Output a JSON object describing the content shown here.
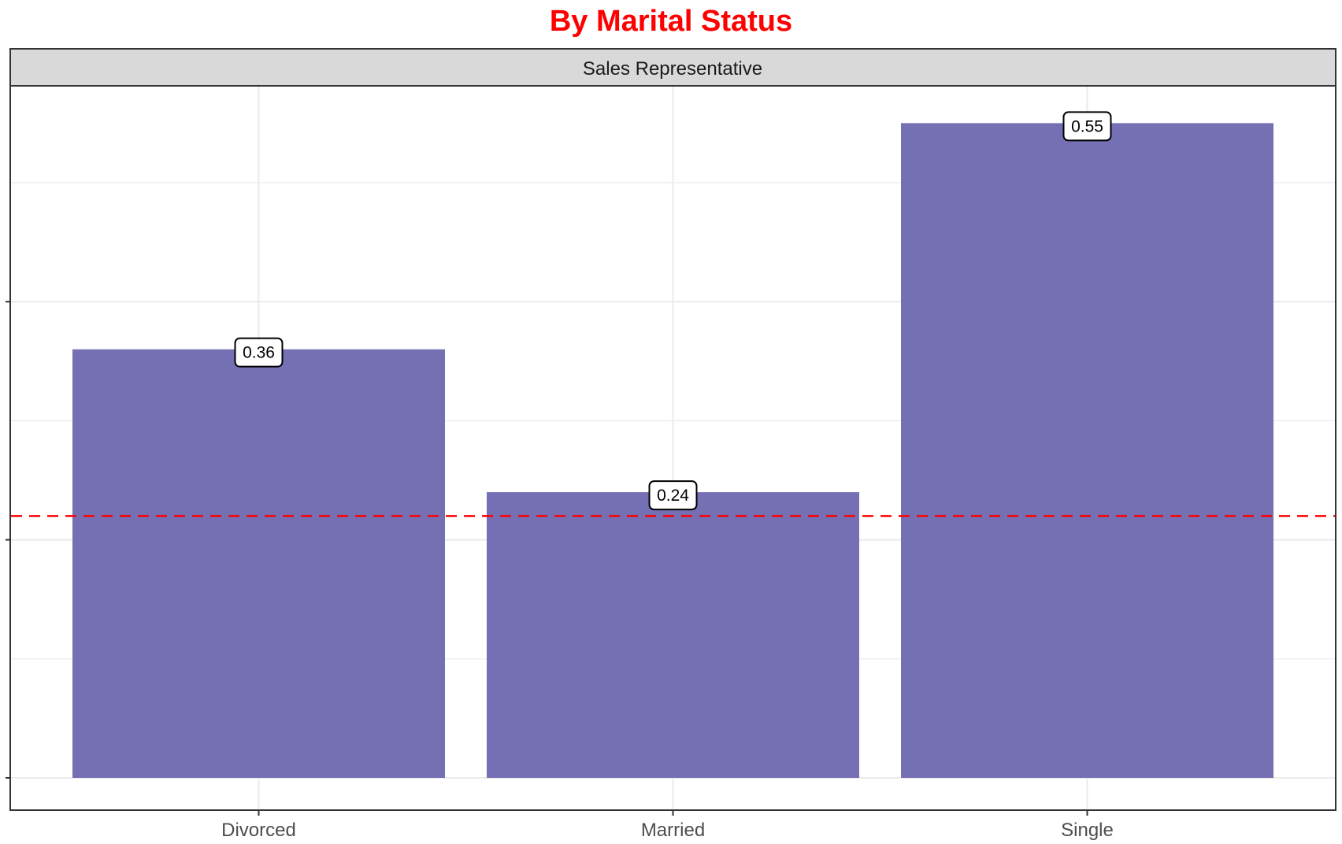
{
  "chart_data": {
    "type": "bar",
    "title": "By Marital Status",
    "facet": "Sales Representative",
    "categories": [
      "Divorced",
      "Married",
      "Single"
    ],
    "values": [
      0.36,
      0.24,
      0.55
    ],
    "data_labels": [
      "0.36",
      "0.24",
      "0.55"
    ],
    "reference_line": 0.22,
    "ylim": [
      -0.02,
      0.61
    ],
    "xlabel": "",
    "ylabel": "",
    "grid": true,
    "legend": "none",
    "colors": {
      "bar": "#7570b3",
      "title": "#ff0000",
      "reference_line": "#ff0000",
      "strip_background": "#d9d9d9",
      "grid": "#ebebeb"
    }
  }
}
